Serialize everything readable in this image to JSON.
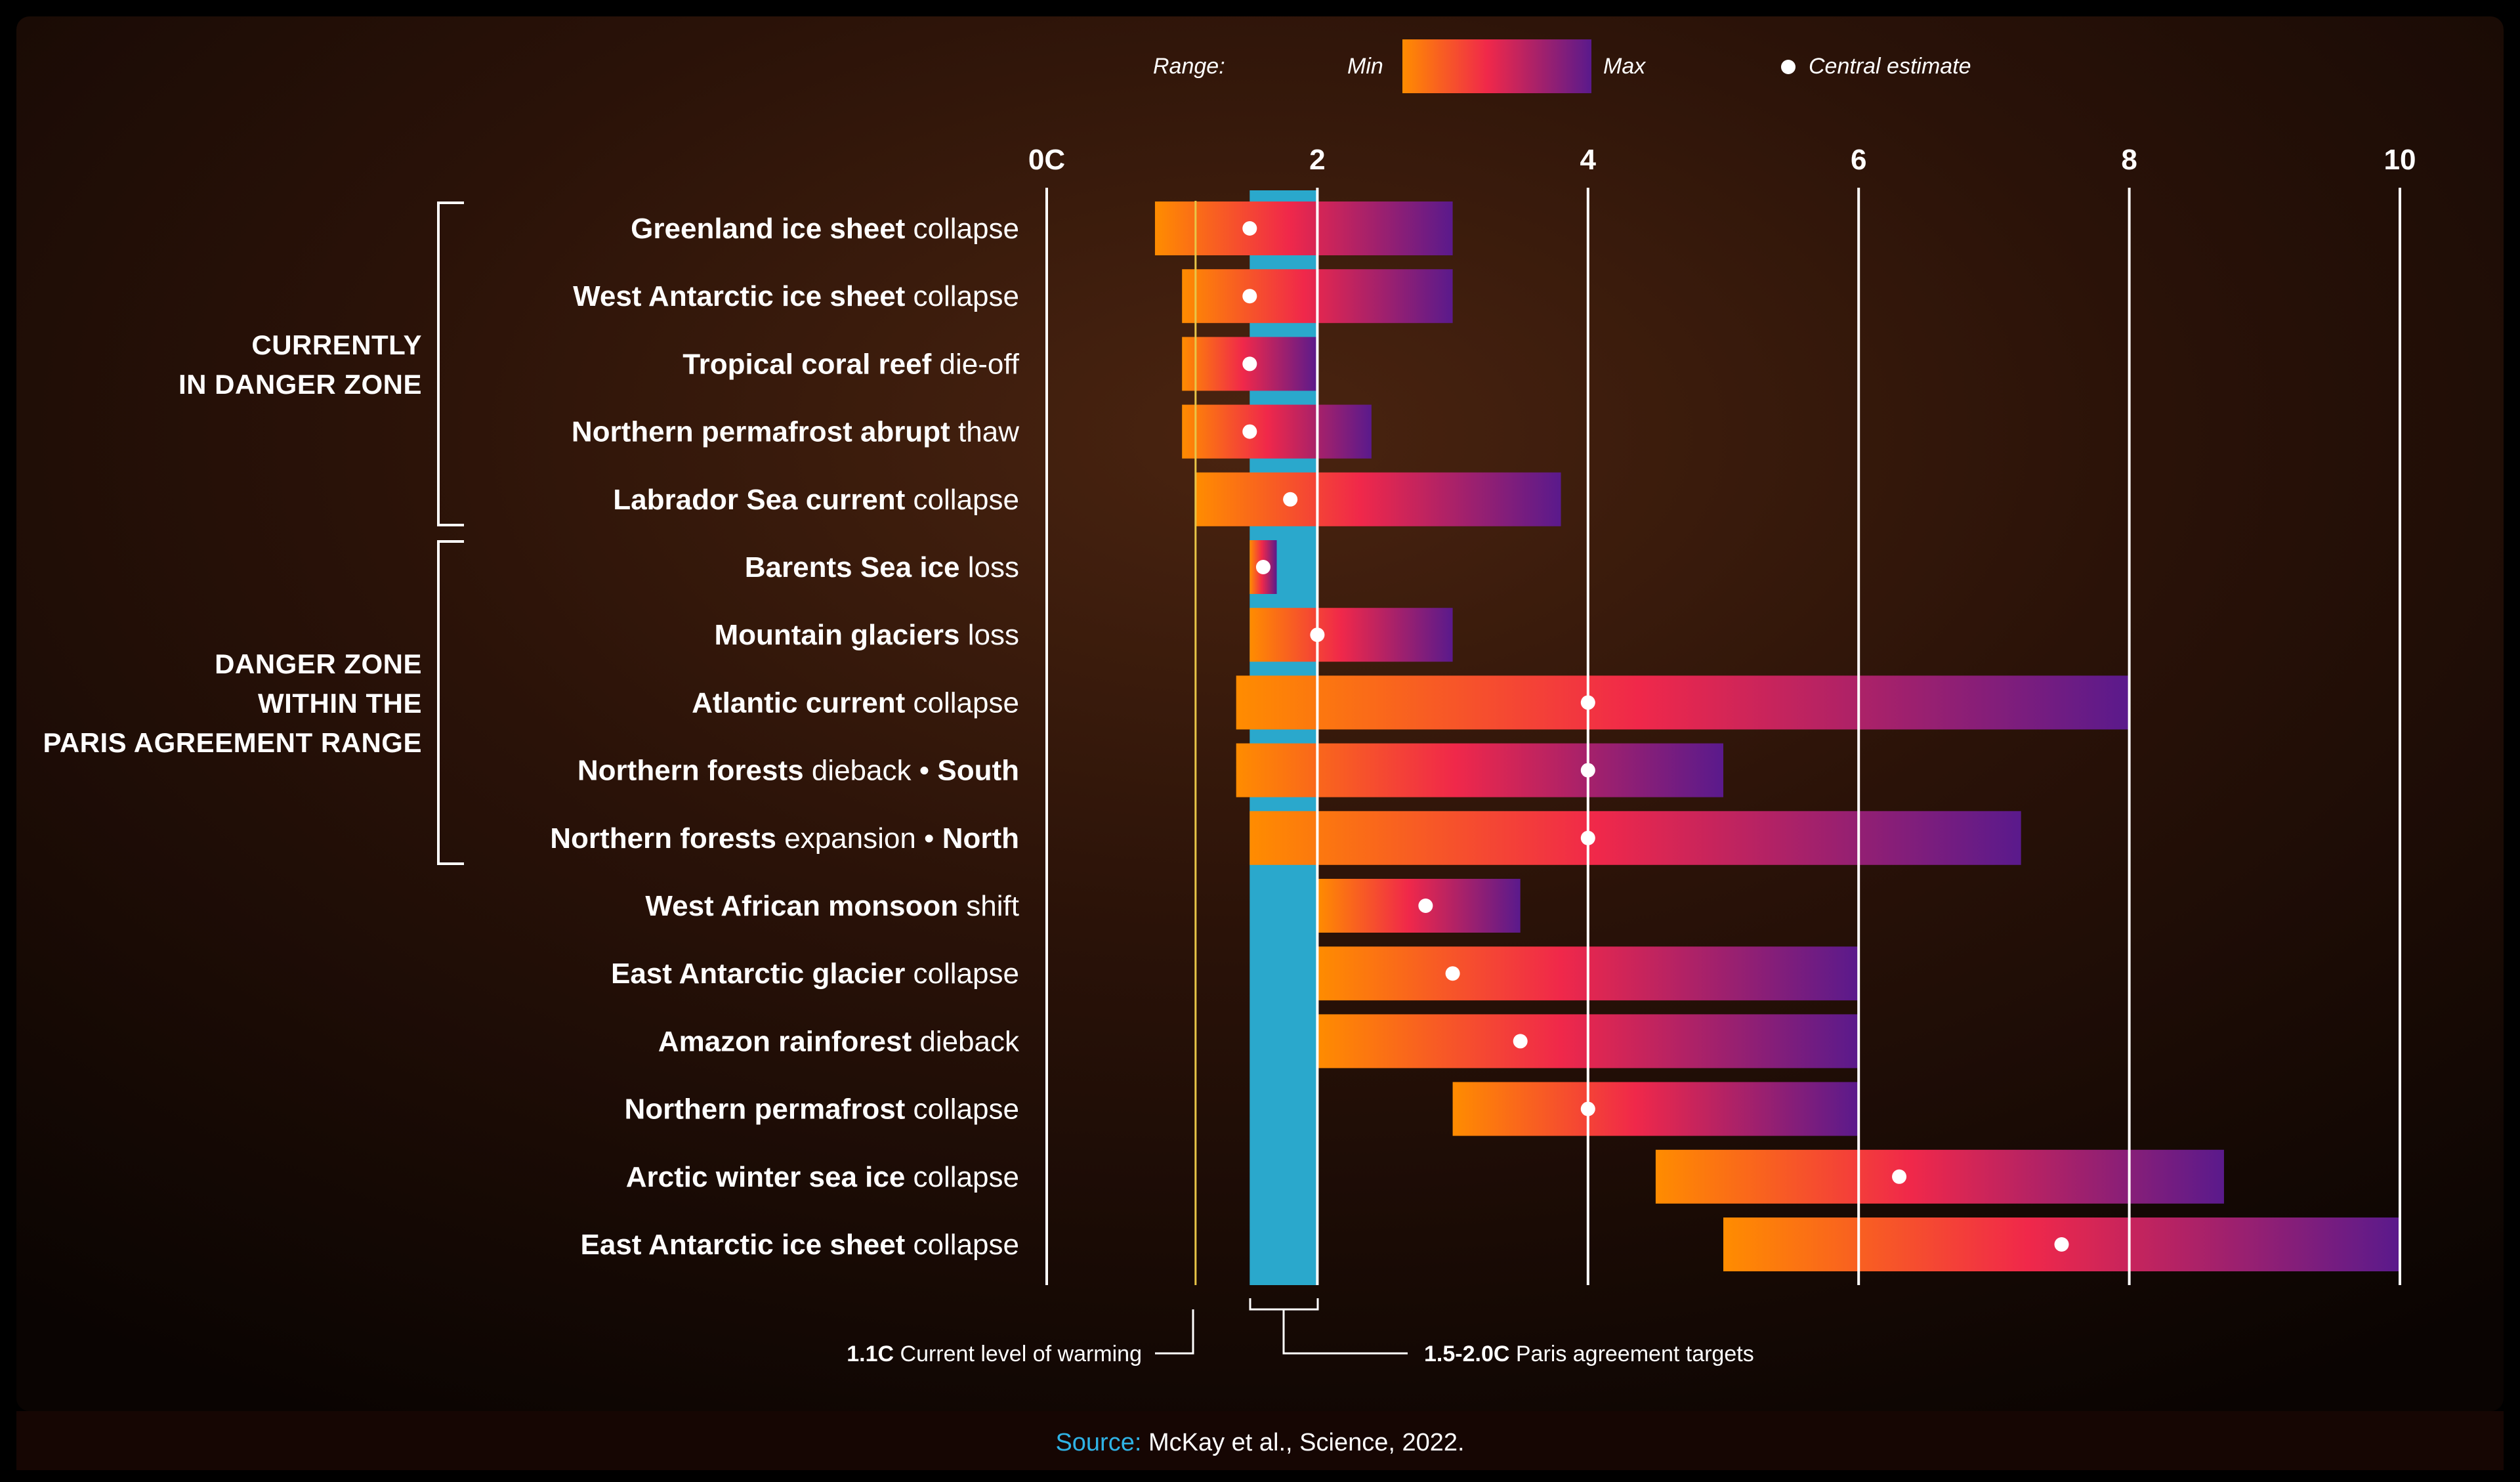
{
  "legend": {
    "range_label": "Range:",
    "min_label": "Min",
    "max_label": "Max",
    "central_label": "Central estimate"
  },
  "groups": [
    {
      "line1": "CURRENTLY",
      "line2": "IN DANGER ZONE"
    },
    {
      "line1": "DANGER ZONE",
      "line2": "WITHIN THE",
      "line3": "PARIS AGREEMENT RANGE"
    }
  ],
  "annotations": {
    "current_bold": "1.1C",
    "current_text": " Current level of warming",
    "paris_bold": "1.5-2.0C",
    "paris_text": " Paris agreement targets"
  },
  "source": {
    "prefix": "Source:",
    "text": " McKay et al., Science, 2022."
  },
  "colors": {
    "gradient_min": "#ff8c00",
    "gradient_mid": "#f0284a",
    "gradient_max": "#5a1a8c",
    "paris_band": "#2aa8cc",
    "current_line": "#e8c547",
    "source_prefix": "#2fb3e6",
    "background": "#1a0a05"
  },
  "chart_data": {
    "type": "range",
    "x_ticks": [
      "0C",
      "2",
      "4",
      "6",
      "8",
      "10"
    ],
    "x_tick_values": [
      0,
      2,
      4,
      6,
      8,
      10
    ],
    "xlim": [
      0,
      10
    ],
    "current_warming": 1.1,
    "paris_range": [
      1.5,
      2.0
    ],
    "items": [
      {
        "bold": "Greenland ice sheet",
        "rest": " collapse",
        "min": 0.8,
        "max": 3.0,
        "central": 1.5
      },
      {
        "bold": "West Antarctic ice sheet",
        "rest": " collapse",
        "min": 1.0,
        "max": 3.0,
        "central": 1.5
      },
      {
        "bold": "Tropical coral reef",
        "rest": " die-off",
        "min": 1.0,
        "max": 2.0,
        "central": 1.5
      },
      {
        "bold": "Northern permafrost abrupt",
        "rest": " thaw",
        "min": 1.0,
        "max": 2.4,
        "central": 1.5
      },
      {
        "bold": "Labrador Sea current",
        "rest": " collapse",
        "min": 1.1,
        "max": 3.8,
        "central": 1.8
      },
      {
        "bold": "Barents Sea ice",
        "rest": " loss",
        "min": 1.5,
        "max": 1.7,
        "central": 1.6
      },
      {
        "bold": "Mountain glaciers",
        "rest": " loss",
        "min": 1.5,
        "max": 3.0,
        "central": 2.0
      },
      {
        "bold": "Atlantic current",
        "rest": " collapse",
        "min": 1.4,
        "max": 8.0,
        "central": 4.0
      },
      {
        "bold": "Northern forests",
        "rest": " dieback • ",
        "bold2": "South",
        "min": 1.4,
        "max": 5.0,
        "central": 4.0
      },
      {
        "bold": "Northern forests",
        "rest": " expansion • ",
        "bold2": "North",
        "min": 1.5,
        "max": 7.2,
        "central": 4.0
      },
      {
        "bold": "West African monsoon",
        "rest": " shift",
        "min": 2.0,
        "max": 3.5,
        "central": 2.8
      },
      {
        "bold": "East Antarctic glacier",
        "rest": " collapse",
        "min": 2.0,
        "max": 6.0,
        "central": 3.0
      },
      {
        "bold": "Amazon rainforest",
        "rest": " dieback",
        "min": 2.0,
        "max": 6.0,
        "central": 3.5
      },
      {
        "bold": "Northern permafrost",
        "rest": " collapse",
        "min": 3.0,
        "max": 6.0,
        "central": 4.0
      },
      {
        "bold": "Arctic winter sea ice",
        "rest": " collapse",
        "min": 4.5,
        "max": 8.7,
        "central": 6.3
      },
      {
        "bold": "East Antarctic ice sheet",
        "rest": " collapse",
        "min": 5.0,
        "max": 10.0,
        "central": 7.5
      }
    ]
  }
}
